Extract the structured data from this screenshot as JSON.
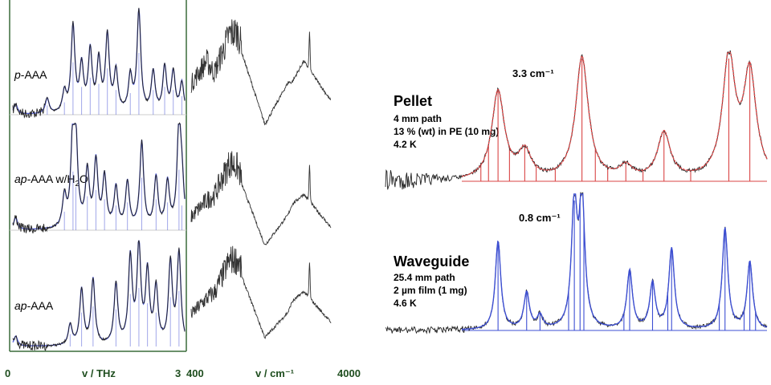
{
  "chart_data": [
    {
      "type": "line",
      "panel": "left-terahertz",
      "xlabel": "v / THz",
      "xlim": [
        0,
        3
      ],
      "tick_labels": [
        "0",
        "3"
      ],
      "series": [
        {
          "name": "p-AAA",
          "name_italic": "p",
          "name_rest": "-AAA",
          "x": [
            0.05,
            0.6,
            0.9,
            1.05,
            1.2,
            1.35,
            1.5,
            1.65,
            1.8,
            2.05,
            2.2,
            2.45,
            2.65,
            2.8,
            2.95
          ],
          "y": [
            0.1,
            0.15,
            0.2,
            0.85,
            0.45,
            0.6,
            0.5,
            0.75,
            0.4,
            0.35,
            1.0,
            0.4,
            0.45,
            0.4,
            0.3
          ],
          "color": "#222222",
          "fit_color": "#5560d8"
        },
        {
          "name": "ap-AAA w/H2O",
          "name_italic": "ap",
          "name_rest": "-AAA w/H",
          "name_sub": "2",
          "name_end": "O",
          "x": [
            0.05,
            0.9,
            1.05,
            1.1,
            1.3,
            1.45,
            1.6,
            1.8,
            2.0,
            2.25,
            2.5,
            2.7,
            2.9,
            2.95
          ],
          "y": [
            0.12,
            0.3,
            0.95,
            0.7,
            0.55,
            0.65,
            0.5,
            0.4,
            0.45,
            0.85,
            0.5,
            0.45,
            0.98,
            0.4
          ],
          "color": "#222222",
          "fit_color": "#5560d8"
        },
        {
          "name": "ap-AAA",
          "name_italic": "ap",
          "name_rest": "-AAA",
          "x": [
            0.05,
            1.0,
            1.2,
            1.4,
            1.8,
            2.05,
            2.2,
            2.35,
            2.5,
            2.75,
            2.9
          ],
          "y": [
            0.1,
            0.2,
            0.55,
            0.65,
            0.6,
            0.85,
            0.95,
            0.7,
            0.55,
            0.8,
            0.9
          ],
          "color": "#222222",
          "fit_color": "#5560d8"
        }
      ]
    },
    {
      "type": "line",
      "panel": "middle-infrared",
      "xlabel": "v / cm⁻¹",
      "xlim": [
        400,
        4000
      ],
      "tick_labels": [
        "400",
        "4000"
      ],
      "series": [
        {
          "x": [
            400,
            800,
            1000,
            1400,
            1600,
            2300,
            2900,
            3000,
            3300
          ],
          "y": [
            0.5,
            0.7,
            0.6,
            0.95,
            0.95,
            0.15,
            0.55,
            0.55,
            0.75
          ],
          "color": "#333333"
        },
        {
          "x": [
            400,
            800,
            1000,
            1400,
            1600,
            2300,
            2900,
            3000,
            3300
          ],
          "y": [
            0.4,
            0.55,
            0.6,
            0.9,
            0.85,
            0.15,
            0.45,
            0.55,
            0.65
          ],
          "color": "#333333"
        },
        {
          "x": [
            400,
            800,
            1000,
            1400,
            1600,
            2300,
            2900,
            3000,
            3300
          ],
          "y": [
            0.35,
            0.5,
            0.55,
            0.85,
            0.85,
            0.15,
            0.4,
            0.5,
            0.6
          ],
          "color": "#333333"
        }
      ]
    },
    {
      "type": "line",
      "panel": "right-comparison",
      "series": [
        {
          "name": "Pellet",
          "info": [
            "4 mm path",
            "13 % (wt) in PE (10 mg)",
            "4.2 K"
          ],
          "resolution": "3.3 cm⁻¹",
          "peaks": [
            [
              678,
              0.72
            ],
            [
              706,
              0.22
            ],
            [
              766,
              1.0
            ],
            [
              812,
              0.1
            ],
            [
              852,
              0.38
            ],
            [
              920,
              0.98
            ],
            [
              942,
              0.85
            ]
          ],
          "sticks": [
            660,
            668,
            678,
            690,
            706,
            718,
            738,
            766,
            780,
            793,
            812,
            830,
            852,
            880,
            920,
            942
          ],
          "data_color": "#222222",
          "fit_color": "#d94545"
        },
        {
          "name": "Waveguide",
          "info": [
            "25.4 mm path",
            "2 µm film (1 mg)",
            "4.6 K"
          ],
          "resolution": "0.8 cm⁻¹",
          "peaks": [
            [
              678,
              0.68
            ],
            [
              708,
              0.28
            ],
            [
              722,
              0.1
            ],
            [
              758,
              0.95
            ],
            [
              766,
              1.0
            ],
            [
              816,
              0.45
            ],
            [
              840,
              0.35
            ],
            [
              860,
              0.62
            ],
            [
              916,
              0.78
            ],
            [
              942,
              0.52
            ]
          ],
          "sticks": [
            678,
            708,
            722,
            752,
            758,
            764,
            768,
            810,
            816,
            840,
            856,
            860,
            910,
            916,
            936,
            942,
            948
          ],
          "data_color": "#222222",
          "fit_color": "#3d4fd3"
        }
      ]
    }
  ]
}
